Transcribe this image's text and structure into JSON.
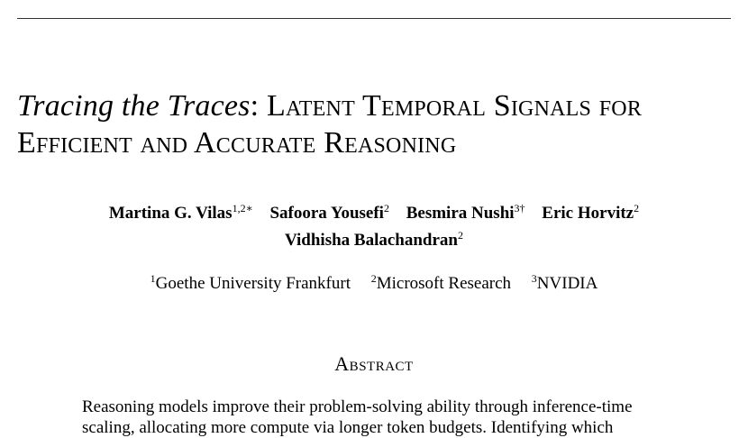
{
  "paper": {
    "title_italic": "Tracing the Traces",
    "title_rest_line1": ": Latent Temporal Signals for",
    "title_line2": "Efficient and Accurate Reasoning",
    "authors": [
      {
        "name": "Martina G. Vilas",
        "sup": "1,2∗"
      },
      {
        "name": "Safoora Yousefi",
        "sup": "2"
      },
      {
        "name": "Besmira Nushi",
        "sup": "3†"
      },
      {
        "name": "Eric Horvitz",
        "sup": "2"
      },
      {
        "name": "Vidhisha Balachandran",
        "sup": "2"
      }
    ],
    "affiliations": [
      {
        "sup": "1",
        "name": "Goethe University Frankfurt"
      },
      {
        "sup": "2",
        "name": "Microsoft Research"
      },
      {
        "sup": "3",
        "name": "NVIDIA"
      }
    ],
    "abstract_heading": "Abstract",
    "abstract_lines": [
      "Reasoning models improve their problem-solving ability through inference-time",
      "scaling, allocating more compute via longer token budgets. Identifying which"
    ]
  }
}
